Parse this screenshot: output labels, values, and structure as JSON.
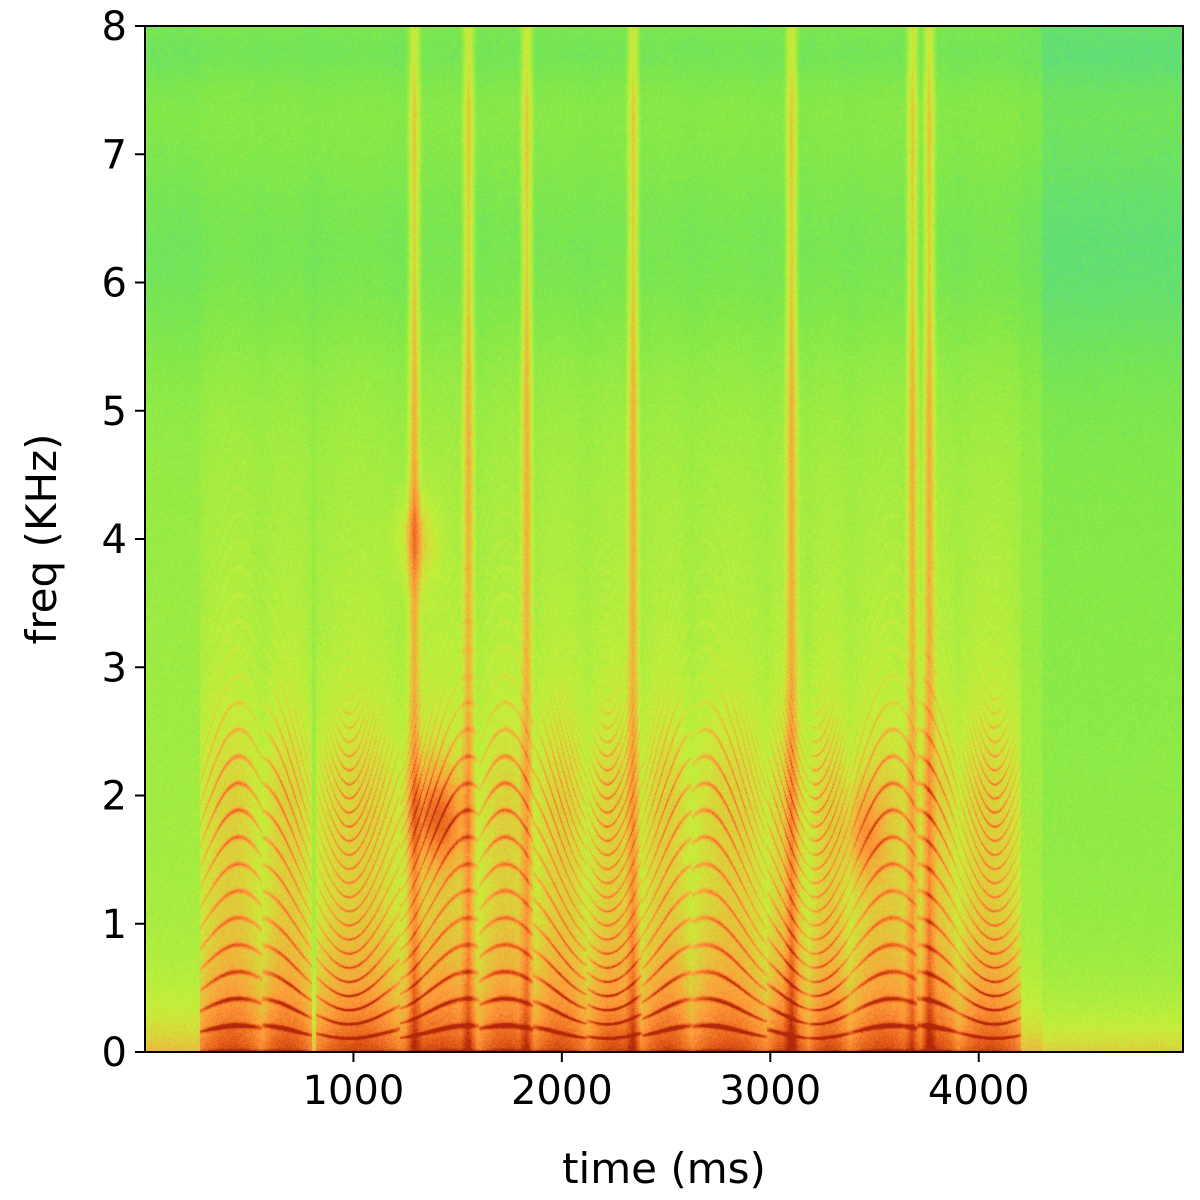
{
  "chart_data": {
    "type": "heatmap",
    "title": "",
    "xlabel": "time (ms)",
    "ylabel": "freq (KHz)",
    "xlim": [
      0,
      4980
    ],
    "ylim": [
      0,
      8
    ],
    "x_ticks": [
      1000,
      2000,
      3000,
      4000
    ],
    "y_ticks": [
      0,
      1,
      2,
      3,
      4,
      5,
      6,
      7,
      8
    ],
    "x_tick_labels": [
      "1000",
      "2000",
      "3000",
      "4000"
    ],
    "y_tick_labels": [
      "0",
      "1",
      "2",
      "3",
      "4",
      "5",
      "6",
      "7",
      "8"
    ],
    "colormap": "turbo",
    "colors": {
      "low": "#1fc8d8",
      "mid_low": "#7ee84a",
      "mid": "#c8f03a",
      "mid_high": "#ff9a3a",
      "high": "#c83c10"
    },
    "grid": false,
    "legend": "none",
    "voiced_segments_ms": [
      [
        260,
        560
      ],
      [
        560,
        800
      ],
      [
        820,
        1220
      ],
      [
        1220,
        1600
      ],
      [
        1600,
        1860
      ],
      [
        1860,
        2120
      ],
      [
        2120,
        2380
      ],
      [
        2380,
        2620
      ],
      [
        2620,
        2980
      ],
      [
        2980,
        3180
      ],
      [
        3180,
        3380
      ],
      [
        3380,
        3700
      ],
      [
        3700,
        3900
      ],
      [
        3900,
        4200
      ]
    ],
    "broadband_bursts_ms": [
      1290,
      1550,
      1830,
      2340,
      3100,
      3680,
      3760
    ],
    "formant_peaks_khz": [
      {
        "t": 1350,
        "f": 1.85
      },
      {
        "t": 1450,
        "f": 1.8
      },
      {
        "t": 3450,
        "f": 1.7
      },
      {
        "t": 1300,
        "f": 4.0
      }
    ]
  }
}
